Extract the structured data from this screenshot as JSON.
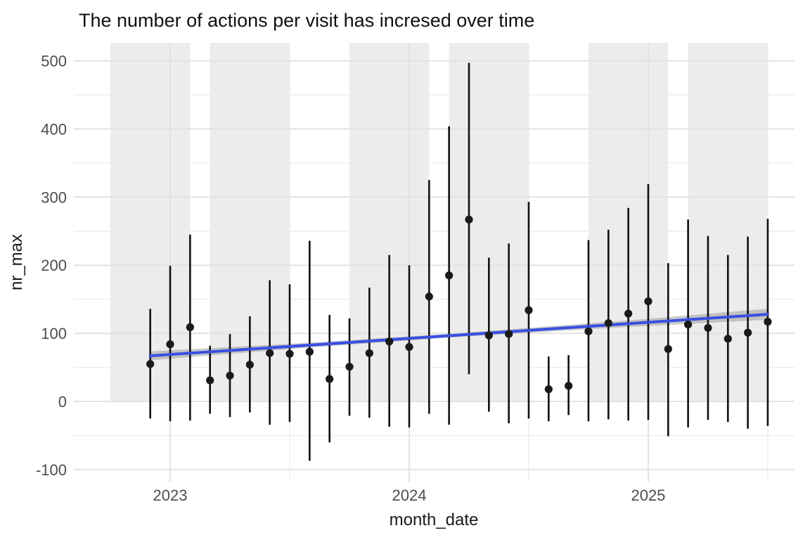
{
  "title": "The number of actions per visit has incresed over time",
  "colors": {
    "background": "#FFFFFF",
    "band_fill": "#ECECEC",
    "grid_major": "#E2E2E2",
    "grid_minor": "#ECECEC",
    "point": "#1A1A1A",
    "error_bar": "#111111",
    "trend_line": "#3850E2",
    "ribbon": "#9E9E9E",
    "tick_label": "#4D4D4D",
    "title_color": "#111111"
  },
  "chart_data": {
    "type": "scatter",
    "subtype": "points-with-error-bars-and-linear-trend",
    "title": "The number of actions per visit has incresed over time",
    "xlabel": "month_date",
    "ylabel": "nr_max",
    "x_tick_labels": [
      "2023",
      "2024",
      "2025"
    ],
    "x_tick_months": [
      "2023-01",
      "2024-01",
      "2025-01"
    ],
    "x_minor_grid_months": [
      "2023-07",
      "2024-07",
      "2025-07"
    ],
    "y_ticks": [
      -100,
      0,
      100,
      200,
      300,
      400,
      500
    ],
    "y_minor_ticks": [
      -50,
      50,
      150,
      250,
      350,
      450
    ],
    "ylim": [
      -117.5,
      526.5
    ],
    "xlim_months": [
      "2022-08-07",
      "2025-08-10"
    ],
    "grid": "major+minor",
    "legend": "none",
    "shaded_bands": [
      {
        "from": "2022-10",
        "to": "2023-02",
        "ymin": 0
      },
      {
        "from": "2023-03",
        "to": "2023-07",
        "ymin": 0
      },
      {
        "from": "2023-10",
        "to": "2024-02",
        "ymin": 0
      },
      {
        "from": "2024-03",
        "to": "2024-07",
        "ymin": 0
      },
      {
        "from": "2024-10",
        "to": "2025-02",
        "ymin": 0
      },
      {
        "from": "2025-03",
        "to": "2025-07",
        "ymin": 0
      }
    ],
    "points": [
      {
        "month": "2022-12",
        "y": 55,
        "ymin": -25,
        "ymax": 136
      },
      {
        "month": "2023-01",
        "y": 84,
        "ymin": -29,
        "ymax": 199
      },
      {
        "month": "2023-02",
        "y": 109,
        "ymin": -28,
        "ymax": 245
      },
      {
        "month": "2023-03",
        "y": 31,
        "ymin": -18,
        "ymax": 82
      },
      {
        "month": "2023-04",
        "y": 38,
        "ymin": -23,
        "ymax": 99
      },
      {
        "month": "2023-05",
        "y": 54,
        "ymin": -16,
        "ymax": 125
      },
      {
        "month": "2023-06",
        "y": 71,
        "ymin": -34,
        "ymax": 178
      },
      {
        "month": "2023-07",
        "y": 70,
        "ymin": -30,
        "ymax": 172
      },
      {
        "month": "2023-08",
        "y": 73,
        "ymin": -87,
        "ymax": 236
      },
      {
        "month": "2023-09",
        "y": 33,
        "ymin": -60,
        "ymax": 127
      },
      {
        "month": "2023-10",
        "y": 51,
        "ymin": -21,
        "ymax": 122
      },
      {
        "month": "2023-11",
        "y": 71,
        "ymin": -24,
        "ymax": 167
      },
      {
        "month": "2023-12",
        "y": 88,
        "ymin": -37,
        "ymax": 215
      },
      {
        "month": "2024-01",
        "y": 80,
        "ymin": -38,
        "ymax": 200
      },
      {
        "month": "2024-02",
        "y": 154,
        "ymin": -18,
        "ymax": 325
      },
      {
        "month": "2024-03",
        "y": 185,
        "ymin": -34,
        "ymax": 404
      },
      {
        "month": "2024-04",
        "y": 267,
        "ymin": 40,
        "ymax": 497
      },
      {
        "month": "2024-05",
        "y": 97,
        "ymin": -15,
        "ymax": 211
      },
      {
        "month": "2024-06",
        "y": 99,
        "ymin": -32,
        "ymax": 232
      },
      {
        "month": "2024-07",
        "y": 134,
        "ymin": -25,
        "ymax": 293
      },
      {
        "month": "2024-08",
        "y": 18,
        "ymin": -29,
        "ymax": 66
      },
      {
        "month": "2024-09",
        "y": 23,
        "ymin": -20,
        "ymax": 68
      },
      {
        "month": "2024-10",
        "y": 103,
        "ymin": -29,
        "ymax": 237
      },
      {
        "month": "2024-11",
        "y": 115,
        "ymin": -26,
        "ymax": 252
      },
      {
        "month": "2024-12",
        "y": 129,
        "ymin": -28,
        "ymax": 284
      },
      {
        "month": "2025-01",
        "y": 147,
        "ymin": -27,
        "ymax": 319
      },
      {
        "month": "2025-02",
        "y": 77,
        "ymin": -51,
        "ymax": 203
      },
      {
        "month": "2025-03",
        "y": 113,
        "ymin": -38,
        "ymax": 267
      },
      {
        "month": "2025-04",
        "y": 108,
        "ymin": -27,
        "ymax": 243
      },
      {
        "month": "2025-05",
        "y": 92,
        "ymin": -30,
        "ymax": 215
      },
      {
        "month": "2025-06",
        "y": 101,
        "ymin": -40,
        "ymax": 242
      },
      {
        "month": "2025-07",
        "y": 117,
        "ymin": -36,
        "ymax": 268
      }
    ],
    "trend": {
      "type": "linear",
      "start_month": "2022-12",
      "start_value": 67,
      "end_month": "2025-07",
      "end_value": 128
    },
    "confidence_ribbon_halfwidth": [
      {
        "month_t": 0,
        "hw": 6.5
      },
      {
        "month_t": 8,
        "hw": 3.5
      },
      {
        "month_t": 15.5,
        "hw": 2.8
      },
      {
        "month_t": 23,
        "hw": 4.5
      },
      {
        "month_t": 31,
        "hw": 8.0
      }
    ]
  }
}
